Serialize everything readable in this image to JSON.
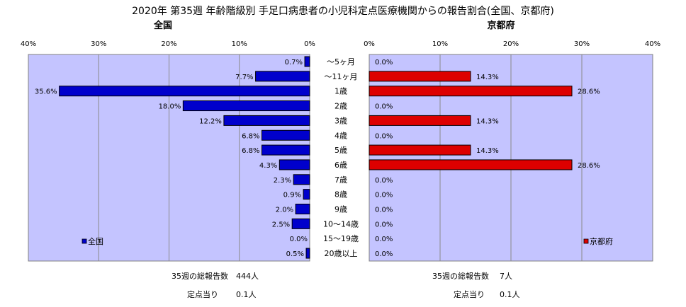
{
  "title": "2020年 第35週 年齢階級別 手足口病患者の小児科定点医療機関からの報告割合(全国、京都府)",
  "colors": {
    "plot_bg": "#c4c4ff",
    "national_bar": "#0000cc",
    "kyoto_bar": "#dd0000",
    "grid": "#8a8a8a"
  },
  "chart_data": [
    {
      "type": "bar",
      "orientation": "horizontal-reversed",
      "title": "全国",
      "xlim": [
        0,
        40
      ],
      "xticks": [
        "40%",
        "30%",
        "20%",
        "10%",
        "0%"
      ],
      "legend": "全国",
      "legend_position": "bottom-left",
      "categories": [
        "～5ヶ月",
        "～11ヶ月",
        "1歳",
        "2歳",
        "3歳",
        "4歳",
        "5歳",
        "6歳",
        "7歳",
        "8歳",
        "9歳",
        "10～14歳",
        "15～19歳",
        "20歳以上"
      ],
      "values": [
        0.7,
        7.7,
        35.6,
        18.0,
        12.2,
        6.8,
        6.8,
        4.3,
        2.3,
        0.9,
        2.0,
        2.5,
        0.0,
        0.5
      ],
      "value_labels": [
        "0.7%",
        "7.7%",
        "35.6%",
        "18.0%",
        "12.2%",
        "6.8%",
        "6.8%",
        "4.3%",
        "2.3%",
        "0.9%",
        "2.0%",
        "2.5%",
        "0.0%",
        "0.5%"
      ],
      "grid": true
    },
    {
      "type": "bar",
      "orientation": "horizontal",
      "title": "京都府",
      "xlim": [
        0,
        40
      ],
      "xticks": [
        "0%",
        "10%",
        "20%",
        "30%",
        "40%"
      ],
      "legend": "京都府",
      "legend_position": "bottom-right",
      "categories": [
        "～5ヶ月",
        "～11ヶ月",
        "1歳",
        "2歳",
        "3歳",
        "4歳",
        "5歳",
        "6歳",
        "7歳",
        "8歳",
        "9歳",
        "10～14歳",
        "15～19歳",
        "20歳以上"
      ],
      "values": [
        0.0,
        14.3,
        28.6,
        0.0,
        14.3,
        0.0,
        14.3,
        28.6,
        0.0,
        0.0,
        0.0,
        0.0,
        0.0,
        0.0
      ],
      "value_labels": [
        "0.0%",
        "14.3%",
        "28.6%",
        "0.0%",
        "14.3%",
        "0.0%",
        "14.3%",
        "28.6%",
        "0.0%",
        "0.0%",
        "0.0%",
        "0.0%",
        "0.0%",
        "0.0%"
      ],
      "grid": true
    }
  ],
  "footer": {
    "national": {
      "total_label": "35週の総報告数",
      "total_value": "444人",
      "per_label": "定点当り",
      "per_value": "0.1人"
    },
    "kyoto": {
      "total_label": "35週の総報告数",
      "total_value": "7人",
      "per_label": "定点当り",
      "per_value": "0.1人"
    }
  }
}
